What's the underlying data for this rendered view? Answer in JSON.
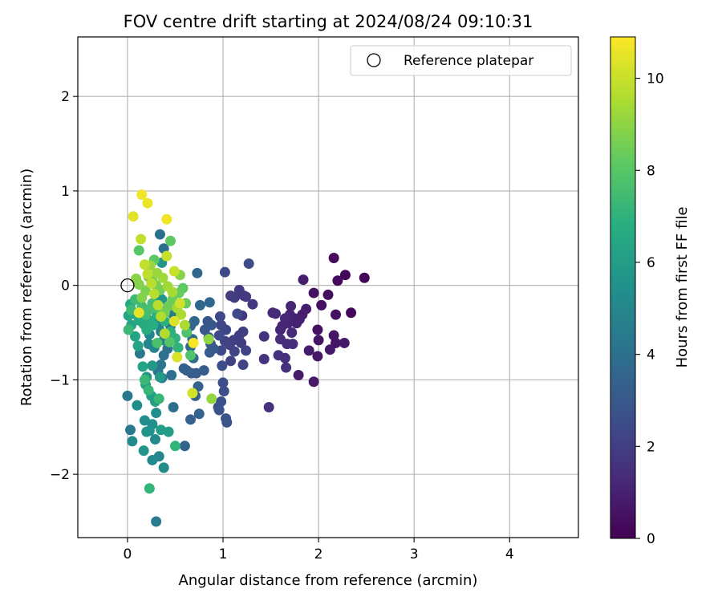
{
  "chart_data": {
    "type": "scatter",
    "title": "FOV centre drift starting at 2024/08/24 09:10:31",
    "xlabel": "Angular distance from reference (arcmin)",
    "ylabel": "Rotation from reference (arcmin)",
    "xlim": [
      -0.52,
      4.72
    ],
    "ylim": [
      -2.67,
      2.63
    ],
    "xticks": [
      0,
      1,
      2,
      3,
      4
    ],
    "xtick_labels": [
      "0",
      "1",
      "2",
      "3",
      "4"
    ],
    "yticks": [
      -2,
      -1,
      0,
      1,
      2
    ],
    "ytick_labels": [
      "−2",
      "−1",
      "0",
      "1",
      "2"
    ],
    "grid": true,
    "legend": {
      "placement": "top-right",
      "entries": [
        "Reference platepar"
      ]
    },
    "reference_point": {
      "x": 0,
      "y": 0
    },
    "colorbar": {
      "label": "Hours from first FF file",
      "colormap": "viridis",
      "range": [
        0,
        10.9
      ],
      "ticks": [
        0,
        2,
        4,
        6,
        8,
        10
      ],
      "tick_labels": [
        "0",
        "2",
        "4",
        "6",
        "8",
        "10"
      ]
    },
    "points": [
      {
        "x": 2.48,
        "y": 0.08,
        "c": 0.1
      },
      {
        "x": 2.28,
        "y": 0.11,
        "c": 0.2
      },
      {
        "x": 2.34,
        "y": -0.29,
        "c": 0.2
      },
      {
        "x": 2.16,
        "y": 0.29,
        "c": 0.3
      },
      {
        "x": 2.2,
        "y": 0.05,
        "c": 0.3
      },
      {
        "x": 2.1,
        "y": -0.1,
        "c": 0.4
      },
      {
        "x": 2.03,
        "y": -0.21,
        "c": 0.4
      },
      {
        "x": 1.95,
        "y": -0.08,
        "c": 0.5
      },
      {
        "x": 2.18,
        "y": -0.31,
        "c": 0.5
      },
      {
        "x": 1.99,
        "y": -0.47,
        "c": 0.5
      },
      {
        "x": 2.0,
        "y": -0.58,
        "c": 0.6
      },
      {
        "x": 2.16,
        "y": -0.53,
        "c": 0.6
      },
      {
        "x": 2.18,
        "y": -0.61,
        "c": 0.6
      },
      {
        "x": 2.27,
        "y": -0.61,
        "c": 0.7
      },
      {
        "x": 2.12,
        "y": -0.68,
        "c": 0.7
      },
      {
        "x": 1.99,
        "y": -0.75,
        "c": 0.7
      },
      {
        "x": 1.9,
        "y": -0.69,
        "c": 0.8
      },
      {
        "x": 1.95,
        "y": -1.02,
        "c": 0.8
      },
      {
        "x": 1.79,
        "y": -0.95,
        "c": 0.8
      },
      {
        "x": 1.84,
        "y": 0.06,
        "c": 0.9
      },
      {
        "x": 1.87,
        "y": -0.25,
        "c": 0.9
      },
      {
        "x": 1.83,
        "y": -0.31,
        "c": 0.9
      },
      {
        "x": 1.8,
        "y": -0.36,
        "c": 1.0
      },
      {
        "x": 1.77,
        "y": -0.4,
        "c": 1.0
      },
      {
        "x": 1.75,
        "y": -0.35,
        "c": 1.0
      },
      {
        "x": 1.71,
        "y": -0.22,
        "c": 1.1
      },
      {
        "x": 1.7,
        "y": -0.31,
        "c": 1.1
      },
      {
        "x": 1.68,
        "y": -0.4,
        "c": 1.1
      },
      {
        "x": 1.65,
        "y": -0.35,
        "c": 1.2
      },
      {
        "x": 1.62,
        "y": -0.43,
        "c": 1.2
      },
      {
        "x": 1.6,
        "y": -0.47,
        "c": 1.2
      },
      {
        "x": 1.55,
        "y": -0.3,
        "c": 1.3
      },
      {
        "x": 1.52,
        "y": -0.29,
        "c": 1.3
      },
      {
        "x": 1.72,
        "y": -0.5,
        "c": 1.3
      },
      {
        "x": 1.73,
        "y": -0.62,
        "c": 1.4
      },
      {
        "x": 1.67,
        "y": -0.62,
        "c": 1.4
      },
      {
        "x": 1.6,
        "y": -0.57,
        "c": 1.4
      },
      {
        "x": 1.58,
        "y": -0.74,
        "c": 1.5
      },
      {
        "x": 1.65,
        "y": -0.77,
        "c": 1.5
      },
      {
        "x": 1.66,
        "y": -0.87,
        "c": 1.5
      },
      {
        "x": 1.43,
        "y": -0.54,
        "c": 1.6
      },
      {
        "x": 1.43,
        "y": -0.78,
        "c": 1.6
      },
      {
        "x": 1.48,
        "y": -1.29,
        "c": 1.6
      },
      {
        "x": 1.31,
        "y": -0.2,
        "c": 1.7
      },
      {
        "x": 1.22,
        "y": -0.11,
        "c": 1.7
      },
      {
        "x": 1.2,
        "y": -0.32,
        "c": 1.8
      },
      {
        "x": 1.24,
        "y": -0.12,
        "c": 1.8
      },
      {
        "x": 1.17,
        "y": -0.05,
        "c": 1.8
      },
      {
        "x": 1.12,
        "y": -0.13,
        "c": 1.9
      },
      {
        "x": 1.08,
        "y": -0.11,
        "c": 1.9
      },
      {
        "x": 1.19,
        "y": -0.61,
        "c": 1.9
      },
      {
        "x": 1.21,
        "y": -0.49,
        "c": 2.0
      },
      {
        "x": 1.17,
        "y": -0.53,
        "c": 2.0
      },
      {
        "x": 1.11,
        "y": -0.58,
        "c": 2.0
      },
      {
        "x": 1.07,
        "y": -0.63,
        "c": 2.1
      },
      {
        "x": 1.02,
        "y": -0.59,
        "c": 2.1
      },
      {
        "x": 1.08,
        "y": -0.8,
        "c": 2.1
      },
      {
        "x": 1.12,
        "y": -0.7,
        "c": 2.2
      },
      {
        "x": 1.21,
        "y": -0.84,
        "c": 2.2
      },
      {
        "x": 1.24,
        "y": -0.69,
        "c": 2.2
      },
      {
        "x": 1.03,
        "y": -0.47,
        "c": 2.3
      },
      {
        "x": 0.98,
        "y": -0.42,
        "c": 2.3
      },
      {
        "x": 0.97,
        "y": -0.33,
        "c": 2.4
      },
      {
        "x": 1.02,
        "y": 0.14,
        "c": 2.4
      },
      {
        "x": 1.15,
        "y": -0.3,
        "c": 2.4
      },
      {
        "x": 1.27,
        "y": 0.23,
        "c": 2.5
      },
      {
        "x": 0.96,
        "y": -0.53,
        "c": 2.5
      },
      {
        "x": 0.98,
        "y": -0.69,
        "c": 2.5
      },
      {
        "x": 0.99,
        "y": -0.85,
        "c": 2.6
      },
      {
        "x": 1.0,
        "y": -1.03,
        "c": 2.6
      },
      {
        "x": 1.01,
        "y": -1.12,
        "c": 2.6
      },
      {
        "x": 0.98,
        "y": -1.23,
        "c": 2.7
      },
      {
        "x": 0.95,
        "y": -1.29,
        "c": 2.7
      },
      {
        "x": 0.96,
        "y": -1.32,
        "c": 2.8
      },
      {
        "x": 1.03,
        "y": -1.41,
        "c": 2.8
      },
      {
        "x": 1.04,
        "y": -1.45,
        "c": 2.8
      },
      {
        "x": 0.84,
        "y": -0.38,
        "c": 2.9
      },
      {
        "x": 0.88,
        "y": -0.42,
        "c": 2.9
      },
      {
        "x": 0.81,
        "y": -0.47,
        "c": 3.0
      },
      {
        "x": 0.85,
        "y": -0.55,
        "c": 3.0
      },
      {
        "x": 0.87,
        "y": -0.62,
        "c": 3.0
      },
      {
        "x": 0.9,
        "y": -0.67,
        "c": 3.1
      },
      {
        "x": 0.86,
        "y": -0.71,
        "c": 3.1
      },
      {
        "x": 0.8,
        "y": -0.9,
        "c": 3.2
      },
      {
        "x": 0.72,
        "y": -0.93,
        "c": 3.2
      },
      {
        "x": 0.67,
        "y": -0.93,
        "c": 3.2
      },
      {
        "x": 0.62,
        "y": -0.9,
        "c": 3.3
      },
      {
        "x": 0.59,
        "y": -0.88,
        "c": 3.3
      },
      {
        "x": 0.74,
        "y": -1.07,
        "c": 3.4
      },
      {
        "x": 0.71,
        "y": -1.17,
        "c": 3.4
      },
      {
        "x": 0.66,
        "y": -1.42,
        "c": 3.4
      },
      {
        "x": 0.75,
        "y": -1.36,
        "c": 3.5
      },
      {
        "x": 0.6,
        "y": -1.7,
        "c": 3.5
      },
      {
        "x": 0.86,
        "y": -0.18,
        "c": 3.6
      },
      {
        "x": 0.76,
        "y": -0.21,
        "c": 3.6
      },
      {
        "x": 0.73,
        "y": 0.13,
        "c": 3.6
      },
      {
        "x": 0.7,
        "y": -0.38,
        "c": 3.7
      },
      {
        "x": 0.66,
        "y": -0.43,
        "c": 3.7
      },
      {
        "x": 0.68,
        "y": -0.57,
        "c": 3.8
      },
      {
        "x": 0.66,
        "y": -0.65,
        "c": 3.8
      },
      {
        "x": 0.69,
        "y": -0.77,
        "c": 3.8
      },
      {
        "x": 0.46,
        "y": -0.95,
        "c": 3.9
      },
      {
        "x": 0.48,
        "y": -1.29,
        "c": 3.9
      },
      {
        "x": 0.34,
        "y": 0.54,
        "c": 4.0
      },
      {
        "x": 0.38,
        "y": 0.39,
        "c": 4.0
      },
      {
        "x": 0.45,
        "y": -0.43,
        "c": 4.0
      },
      {
        "x": 0.42,
        "y": -0.67,
        "c": 4.1
      },
      {
        "x": 0.38,
        "y": -0.74,
        "c": 4.1
      },
      {
        "x": 0.35,
        "y": -0.84,
        "c": 4.2
      },
      {
        "x": 0.32,
        "y": -0.91,
        "c": 4.2
      },
      {
        "x": 0.36,
        "y": -0.98,
        "c": 4.2
      },
      {
        "x": 0.13,
        "y": -0.72,
        "c": 4.3
      },
      {
        "x": 0.0,
        "y": -1.17,
        "c": 4.3
      },
      {
        "x": 0.03,
        "y": -1.53,
        "c": 4.4
      },
      {
        "x": 0.3,
        "y": -2.5,
        "c": 4.5
      },
      {
        "x": 0.48,
        "y": -0.31,
        "c": 4.5
      },
      {
        "x": 0.42,
        "y": -0.25,
        "c": 4.6
      },
      {
        "x": 0.4,
        "y": -0.55,
        "c": 4.6
      },
      {
        "x": 0.38,
        "y": -0.58,
        "c": 4.7
      },
      {
        "x": 0.35,
        "y": -0.49,
        "c": 4.7
      },
      {
        "x": 0.33,
        "y": -0.41,
        "c": 4.8
      },
      {
        "x": 0.3,
        "y": -0.35,
        "c": 4.8
      },
      {
        "x": 0.28,
        "y": -0.66,
        "c": 4.9
      },
      {
        "x": 0.23,
        "y": -0.52,
        "c": 4.9
      },
      {
        "x": 0.22,
        "y": -0.62,
        "c": 5.0
      },
      {
        "x": 0.33,
        "y": -1.81,
        "c": 5.0
      },
      {
        "x": 0.29,
        "y": -1.63,
        "c": 5.1
      },
      {
        "x": 0.26,
        "y": -1.85,
        "c": 5.1
      },
      {
        "x": 0.38,
        "y": -1.93,
        "c": 5.2
      },
      {
        "x": 0.05,
        "y": -1.65,
        "c": 5.2
      },
      {
        "x": 0.1,
        "y": -1.27,
        "c": 5.3
      },
      {
        "x": 0.3,
        "y": -1.35,
        "c": 5.3
      },
      {
        "x": 0.18,
        "y": -1.43,
        "c": 5.4
      },
      {
        "x": 0.26,
        "y": -1.47,
        "c": 5.4
      },
      {
        "x": 0.23,
        "y": -1.54,
        "c": 5.5
      },
      {
        "x": 0.2,
        "y": -1.55,
        "c": 5.5
      },
      {
        "x": 0.17,
        "y": -1.75,
        "c": 5.6
      },
      {
        "x": 0.33,
        "y": -0.12,
        "c": 5.6
      },
      {
        "x": 0.36,
        "y": -0.15,
        "c": 5.7
      },
      {
        "x": 0.36,
        "y": 0.24,
        "c": 5.7
      },
      {
        "x": 0.26,
        "y": -0.85,
        "c": 5.8
      },
      {
        "x": 0.2,
        "y": -0.97,
        "c": 5.8
      },
      {
        "x": 0.34,
        "y": -0.97,
        "c": 5.9
      },
      {
        "x": 0.43,
        "y": -1.55,
        "c": 6.0
      },
      {
        "x": 0.35,
        "y": -1.53,
        "c": 6.0
      },
      {
        "x": 0.29,
        "y": -1.23,
        "c": 6.1
      },
      {
        "x": 0.25,
        "y": -1.17,
        "c": 6.1
      },
      {
        "x": 0.19,
        "y": -1.05,
        "c": 6.2
      },
      {
        "x": 0.16,
        "y": -0.86,
        "c": 6.2
      },
      {
        "x": 0.11,
        "y": -0.64,
        "c": 6.3
      },
      {
        "x": 0.08,
        "y": -0.54,
        "c": 6.3
      },
      {
        "x": 0.04,
        "y": -0.42,
        "c": 6.4
      },
      {
        "x": 0.01,
        "y": -0.32,
        "c": 6.4
      },
      {
        "x": 0.03,
        "y": -0.2,
        "c": 6.5
      },
      {
        "x": 0.06,
        "y": -0.3,
        "c": 6.5
      },
      {
        "x": 0.12,
        "y": -0.37,
        "c": 6.6
      },
      {
        "x": 0.17,
        "y": -0.41,
        "c": 6.6
      },
      {
        "x": 0.2,
        "y": -0.47,
        "c": 6.7
      },
      {
        "x": 0.23,
        "y": -0.37,
        "c": 6.7
      },
      {
        "x": 0.27,
        "y": -0.42,
        "c": 6.8
      },
      {
        "x": 0.31,
        "y": -0.31,
        "c": 6.8
      },
      {
        "x": 0.39,
        "y": -0.38,
        "c": 6.9
      },
      {
        "x": 0.45,
        "y": -0.49,
        "c": 6.9
      },
      {
        "x": 0.5,
        "y": -0.56,
        "c": 7.0
      },
      {
        "x": 0.53,
        "y": -0.66,
        "c": 7.0
      },
      {
        "x": 0.5,
        "y": -1.7,
        "c": 7.1
      },
      {
        "x": 0.23,
        "y": -2.15,
        "c": 7.1
      },
      {
        "x": 0.33,
        "y": -1.2,
        "c": 7.2
      },
      {
        "x": 0.22,
        "y": -1.11,
        "c": 7.2
      },
      {
        "x": 0.18,
        "y": -1.0,
        "c": 7.3
      },
      {
        "x": 0.01,
        "y": -0.47,
        "c": 7.3
      },
      {
        "x": 0.04,
        "y": -0.26,
        "c": 7.4
      },
      {
        "x": 0.08,
        "y": -0.15,
        "c": 7.4
      },
      {
        "x": 0.15,
        "y": -0.22,
        "c": 7.5
      },
      {
        "x": 0.19,
        "y": -0.31,
        "c": 7.5
      },
      {
        "x": 0.22,
        "y": -0.26,
        "c": 7.6
      },
      {
        "x": 0.26,
        "y": -0.19,
        "c": 7.6
      },
      {
        "x": 0.29,
        "y": -0.24,
        "c": 7.7
      },
      {
        "x": 0.31,
        "y": -0.61,
        "c": 7.7
      },
      {
        "x": 0.62,
        "y": -0.5,
        "c": 7.8
      },
      {
        "x": 0.66,
        "y": -0.74,
        "c": 7.8
      },
      {
        "x": 0.44,
        "y": -0.6,
        "c": 7.9
      },
      {
        "x": 0.12,
        "y": 0.37,
        "c": 8.0
      },
      {
        "x": 0.28,
        "y": 0.27,
        "c": 8.1
      },
      {
        "x": 0.45,
        "y": 0.47,
        "c": 8.2
      },
      {
        "x": 0.58,
        "y": -0.03,
        "c": 8.2
      },
      {
        "x": 0.61,
        "y": -0.19,
        "c": 8.3
      },
      {
        "x": 0.54,
        "y": -0.08,
        "c": 8.3
      },
      {
        "x": 0.47,
        "y": -0.15,
        "c": 8.4
      },
      {
        "x": 0.43,
        "y": -0.22,
        "c": 8.4
      },
      {
        "x": 0.39,
        "y": -0.29,
        "c": 8.5
      },
      {
        "x": 0.34,
        "y": -0.05,
        "c": 8.5
      },
      {
        "x": 0.3,
        "y": 0.0,
        "c": 8.6
      },
      {
        "x": 0.26,
        "y": 0.05,
        "c": 8.6
      },
      {
        "x": 0.22,
        "y": 0.09,
        "c": 8.7
      },
      {
        "x": 0.19,
        "y": -0.06,
        "c": 8.7
      },
      {
        "x": 0.15,
        "y": -0.13,
        "c": 8.8
      },
      {
        "x": 0.12,
        "y": 0.01,
        "c": 8.8
      },
      {
        "x": 0.09,
        "y": 0.07,
        "c": 8.9
      },
      {
        "x": 0.55,
        "y": 0.11,
        "c": 8.9
      },
      {
        "x": 0.85,
        "y": -0.57,
        "c": 9.0
      },
      {
        "x": 0.88,
        "y": -1.2,
        "c": 9.1
      },
      {
        "x": 0.24,
        "y": 0.21,
        "c": 9.2
      },
      {
        "x": 0.31,
        "y": 0.13,
        "c": 9.2
      },
      {
        "x": 0.37,
        "y": 0.08,
        "c": 9.3
      },
      {
        "x": 0.42,
        "y": -0.01,
        "c": 9.3
      },
      {
        "x": 0.47,
        "y": -0.07,
        "c": 9.4
      },
      {
        "x": 0.52,
        "y": -0.24,
        "c": 9.4
      },
      {
        "x": 0.56,
        "y": -0.31,
        "c": 9.5
      },
      {
        "x": 0.6,
        "y": -0.42,
        "c": 9.5
      },
      {
        "x": 0.39,
        "y": -0.51,
        "c": 9.6
      },
      {
        "x": 0.35,
        "y": -0.33,
        "c": 9.6
      },
      {
        "x": 0.32,
        "y": -0.21,
        "c": 9.7
      },
      {
        "x": 0.28,
        "y": -0.09,
        "c": 9.7
      },
      {
        "x": 0.25,
        "y": 0.02,
        "c": 9.8
      },
      {
        "x": 0.21,
        "y": 0.12,
        "c": 9.8
      },
      {
        "x": 0.18,
        "y": 0.22,
        "c": 9.9
      },
      {
        "x": 0.14,
        "y": 0.49,
        "c": 9.9
      },
      {
        "x": 0.41,
        "y": 0.31,
        "c": 10.0
      },
      {
        "x": 0.49,
        "y": 0.15,
        "c": 10.0
      },
      {
        "x": 0.55,
        "y": -0.19,
        "c": 10.1
      },
      {
        "x": 0.68,
        "y": -1.14,
        "c": 10.2
      },
      {
        "x": 0.49,
        "y": -0.38,
        "c": 10.3
      },
      {
        "x": 0.52,
        "y": -0.76,
        "c": 10.3
      },
      {
        "x": 0.06,
        "y": 0.73,
        "c": 10.4
      },
      {
        "x": 0.12,
        "y": -0.29,
        "c": 10.5
      },
      {
        "x": 0.21,
        "y": 0.87,
        "c": 10.6
      },
      {
        "x": 0.15,
        "y": 0.96,
        "c": 10.7
      },
      {
        "x": 0.41,
        "y": 0.7,
        "c": 10.7
      },
      {
        "x": 0.69,
        "y": -0.61,
        "c": 10.8
      }
    ]
  }
}
